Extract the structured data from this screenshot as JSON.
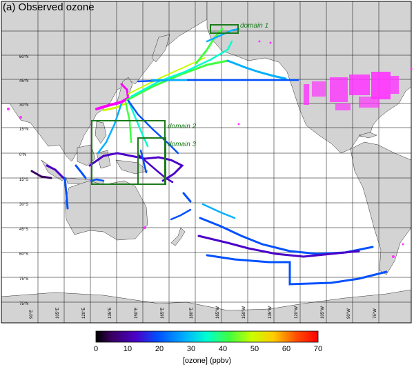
{
  "title": "(a) Observed ozone",
  "latitude_labels": [
    "75°N",
    "60°N",
    "45°N",
    "30°N",
    "15°N",
    "0°N",
    "15°S",
    "30°S",
    "45°S",
    "60°S",
    "75°S"
  ],
  "longitude_labels": [
    "90°E",
    "105°E",
    "120°E",
    "135°E",
    "150°E",
    "165°E",
    "180°E",
    "165°W",
    "150°W",
    "135°W",
    "120°W",
    "105°W",
    "90°W",
    "75°W"
  ],
  "domains": [
    {
      "label": "domain 1"
    },
    {
      "label": "domain 2"
    },
    {
      "label": "domain 3"
    }
  ],
  "colorbar": {
    "title": "[ozone] (ppbv)",
    "ticks": [
      "0",
      "10",
      "20",
      "30",
      "40",
      "50",
      "60",
      "70"
    ],
    "min": 0,
    "max": 70
  },
  "colors": {
    "land": "#d3d3d3",
    "ocean": "#ffffff",
    "grid": "#000000",
    "domain_box": "#1a7a1a",
    "high_ozone_sites": "#ff33ff"
  }
}
